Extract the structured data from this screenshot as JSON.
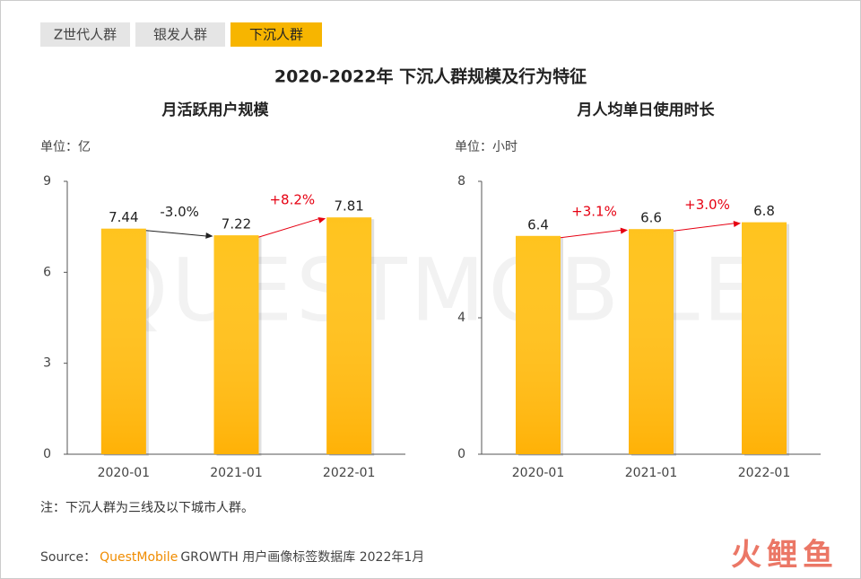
{
  "tabs": [
    "Z世代人群",
    "银发人群",
    "下沉人群"
  ],
  "active_tab": 2,
  "title": "2020-2022年 下沉人群规模及行为特征",
  "watermark": "QUESTMOBILE",
  "chart_data": [
    {
      "type": "bar",
      "title": "月活跃用户规模",
      "unit": "单位：亿",
      "categories": [
        "2020-01",
        "2021-01",
        "2022-01"
      ],
      "values": [
        7.44,
        7.22,
        7.81
      ],
      "color": "#ffbe0a",
      "ylim": [
        0,
        9
      ],
      "yticks": [
        0,
        3,
        6,
        9
      ],
      "annotations": [
        {
          "text": "-3.0%",
          "color": "#222222"
        },
        {
          "text": "+8.2%",
          "color": "#e60012"
        }
      ]
    },
    {
      "type": "bar",
      "title": "月人均单日使用时长",
      "unit": "单位：小时",
      "categories": [
        "2020-01",
        "2021-01",
        "2022-01"
      ],
      "values": [
        6.4,
        6.6,
        6.8
      ],
      "color": "#ffbe0a",
      "ylim": [
        0,
        8
      ],
      "yticks": [
        0,
        4,
        8
      ],
      "annotations": [
        {
          "text": "+3.1%",
          "color": "#e60012"
        },
        {
          "text": "+3.0%",
          "color": "#e60012"
        }
      ]
    }
  ],
  "note": "注：下沉人群为三线及以下城市人群。",
  "source": {
    "prefix": "Source：",
    "brand": "QuestMobile",
    "rest": "GROWTH 用户画像标签数据库 2022年1月"
  },
  "logo": "火鲤鱼"
}
